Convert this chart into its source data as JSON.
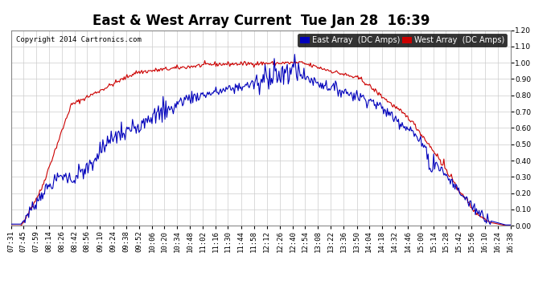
{
  "title": "East & West Array Current  Tue Jan 28  16:39",
  "copyright": "Copyright 2014 Cartronics.com",
  "east_label": "East Array  (DC Amps)",
  "west_label": "West Array  (DC Amps)",
  "east_color": "#0000bb",
  "west_color": "#cc0000",
  "east_label_bg": "#0000bb",
  "west_label_bg": "#cc0000",
  "ylim": [
    0.0,
    1.2
  ],
  "yticks": [
    0.0,
    0.1,
    0.2,
    0.3,
    0.4,
    0.5,
    0.6,
    0.7,
    0.8,
    0.9,
    1.0,
    1.1,
    1.2
  ],
  "background_color": "#ffffff",
  "grid_color": "#cccccc",
  "title_fontsize": 12,
  "tick_fontsize": 6.5,
  "x_labels": [
    "07:31",
    "07:45",
    "07:59",
    "08:14",
    "08:26",
    "08:42",
    "08:56",
    "09:10",
    "09:24",
    "09:38",
    "09:52",
    "10:06",
    "10:20",
    "10:34",
    "10:48",
    "11:02",
    "11:16",
    "11:30",
    "11:44",
    "11:58",
    "12:12",
    "12:26",
    "12:40",
    "12:54",
    "13:08",
    "13:22",
    "13:36",
    "13:50",
    "14:04",
    "14:18",
    "14:32",
    "14:46",
    "15:00",
    "15:14",
    "15:28",
    "15:42",
    "15:56",
    "16:10",
    "16:24",
    "16:38"
  ]
}
